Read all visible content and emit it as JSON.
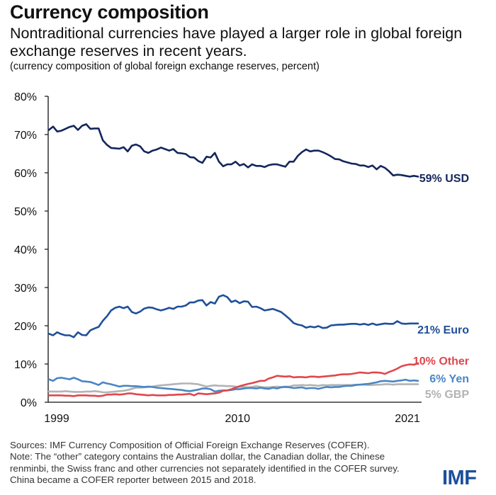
{
  "header": {
    "title": "Currency composition",
    "subtitle": "Nontraditional currencies have played a larger role in global foreign exchange reserves in recent years.",
    "unit_note": "(currency composition of global foreign exchange reserves, percent)"
  },
  "footer": {
    "sources": "Sources: IMF Currency Composition of Official Foreign Exchange Reserves (COFER).",
    "note": "Note: The “other” category contains the Australian dollar, the Canadian dollar, the Chinese renminbi, the Swiss franc and other currencies not separately identified in the COFER survey. China became a COFER reporter between 2015 and 2018.",
    "logo": "IMF"
  },
  "chart_data": {
    "type": "line",
    "title": "Currency composition",
    "xlabel": "",
    "ylabel": "",
    "frequency": "quarterly",
    "x_start": "1999Q1",
    "x_end": "2021Q2",
    "xlim": [
      1999,
      2021.5
    ],
    "ylim": [
      0,
      80
    ],
    "yticks": [
      0,
      10,
      20,
      30,
      40,
      50,
      60,
      70,
      80
    ],
    "ytick_labels": [
      "0%",
      "10%",
      "20%",
      "30%",
      "40%",
      "50%",
      "60%",
      "70%",
      "80%"
    ],
    "xticks": [
      1999,
      2010,
      2021
    ],
    "xtick_labels": [
      "1999",
      "2010",
      "2021"
    ],
    "grid": false,
    "legend": "direct labels at right end of lines",
    "series": [
      {
        "name": "USD",
        "label": "59% USD",
        "color": "#13265c",
        "values": [
          71.2,
          72.1,
          70.8,
          71.0,
          71.5,
          72.0,
          72.3,
          71.2,
          72.3,
          72.7,
          71.5,
          71.6,
          71.6,
          68.5,
          67.3,
          66.5,
          66.4,
          66.3,
          66.7,
          65.6,
          67.1,
          67.4,
          66.9,
          65.6,
          65.2,
          65.8,
          66.1,
          66.6,
          66.2,
          65.8,
          66.2,
          65.2,
          65.1,
          64.9,
          64.1,
          64.0,
          63.1,
          62.6,
          64.2,
          64.0,
          65.2,
          62.9,
          61.7,
          62.2,
          62.2,
          62.9,
          61.9,
          62.3,
          61.4,
          62.2,
          61.8,
          61.8,
          61.5,
          62.0,
          62.2,
          62.2,
          61.9,
          61.6,
          62.9,
          62.9,
          64.4,
          65.4,
          66.1,
          65.6,
          65.8,
          65.8,
          65.4,
          64.9,
          64.3,
          63.6,
          63.5,
          63.0,
          62.7,
          62.4,
          62.3,
          61.9,
          61.9,
          61.5,
          61.9,
          60.9,
          61.8,
          61.3,
          60.4,
          59.3,
          59.5,
          59.4,
          59.2,
          59.0,
          59.2,
          59.0
        ]
      },
      {
        "name": "Euro",
        "label": "21% Euro",
        "color": "#1f4f9a",
        "values": [
          17.9,
          17.5,
          18.3,
          17.8,
          17.5,
          17.5,
          17.0,
          18.3,
          17.6,
          17.5,
          18.8,
          19.3,
          19.7,
          21.3,
          22.5,
          24.0,
          24.7,
          25.0,
          24.6,
          25.0,
          23.6,
          23.2,
          23.7,
          24.5,
          24.8,
          24.7,
          24.3,
          24.0,
          24.3,
          24.7,
          24.4,
          25.0,
          25.0,
          25.3,
          26.1,
          26.1,
          26.6,
          26.7,
          25.3,
          26.2,
          25.8,
          27.6,
          28.0,
          27.5,
          26.2,
          26.6,
          25.9,
          26.4,
          26.3,
          24.9,
          25.0,
          24.6,
          24.0,
          24.2,
          24.4,
          24.0,
          23.6,
          22.7,
          21.8,
          20.7,
          20.3,
          20.1,
          19.5,
          19.8,
          19.6,
          19.9,
          19.4,
          19.5,
          20.1,
          20.2,
          20.3,
          20.3,
          20.4,
          20.5,
          20.5,
          20.3,
          20.5,
          20.2,
          20.6,
          20.2,
          20.4,
          20.6,
          20.5,
          20.5,
          21.2,
          20.6,
          20.5,
          20.6,
          20.6,
          20.6
        ]
      },
      {
        "name": "Other",
        "label": "10% Other",
        "color": "#e0474c",
        "values": [
          1.8,
          1.8,
          1.8,
          1.8,
          1.7,
          1.7,
          1.6,
          1.8,
          1.8,
          1.8,
          1.7,
          1.7,
          1.6,
          1.7,
          2.0,
          2.0,
          2.1,
          2.0,
          2.1,
          2.3,
          2.3,
          2.1,
          2.0,
          1.9,
          1.8,
          1.9,
          1.8,
          1.8,
          1.8,
          1.9,
          1.9,
          2.0,
          2.0,
          2.1,
          2.2,
          1.8,
          2.3,
          2.2,
          2.1,
          2.2,
          2.3,
          2.5,
          3.0,
          3.1,
          3.4,
          3.8,
          4.2,
          4.5,
          4.8,
          5.0,
          5.3,
          5.6,
          5.6,
          6.2,
          6.5,
          6.9,
          6.8,
          6.7,
          6.8,
          6.5,
          6.6,
          6.6,
          6.5,
          6.7,
          6.7,
          6.6,
          6.7,
          6.8,
          6.9,
          7.0,
          7.2,
          7.3,
          7.3,
          7.4,
          7.6,
          7.8,
          7.7,
          7.6,
          7.8,
          7.8,
          7.7,
          7.4,
          7.9,
          8.3,
          8.8,
          9.4,
          9.7,
          9.9,
          9.8,
          10.2
        ]
      },
      {
        "name": "Yen",
        "label": "6% Yen",
        "color": "#4a86c5",
        "values": [
          6.0,
          5.6,
          6.3,
          6.4,
          6.2,
          6.0,
          6.4,
          6.0,
          5.5,
          5.4,
          5.3,
          4.9,
          4.5,
          5.2,
          4.9,
          4.7,
          4.4,
          4.1,
          4.3,
          4.3,
          4.2,
          4.2,
          4.1,
          4.0,
          4.1,
          4.0,
          3.8,
          3.7,
          3.6,
          3.5,
          3.4,
          3.3,
          3.2,
          3.0,
          2.9,
          3.1,
          3.3,
          3.6,
          3.6,
          3.4,
          2.8,
          3.0,
          3.1,
          3.1,
          3.2,
          3.4,
          3.4,
          3.6,
          3.7,
          3.7,
          3.6,
          3.8,
          3.6,
          3.5,
          3.8,
          3.6,
          3.9,
          4.0,
          3.9,
          3.7,
          3.8,
          3.9,
          3.6,
          3.7,
          3.7,
          3.5,
          3.8,
          4.0,
          3.9,
          4.0,
          4.0,
          4.2,
          4.3,
          4.3,
          4.5,
          4.6,
          4.7,
          4.8,
          5.0,
          5.2,
          5.5,
          5.6,
          5.5,
          5.4,
          5.6,
          5.7,
          5.9,
          5.6,
          5.7,
          5.6
        ]
      },
      {
        "name": "GBP",
        "label": "5% GBP",
        "color": "#b3b3b3",
        "values": [
          2.8,
          2.8,
          2.8,
          2.8,
          2.9,
          2.8,
          2.7,
          2.7,
          2.7,
          2.8,
          2.8,
          2.9,
          2.8,
          2.6,
          2.6,
          2.7,
          2.8,
          2.9,
          3.0,
          3.2,
          3.5,
          3.8,
          3.8,
          3.9,
          4.0,
          4.1,
          4.3,
          4.4,
          4.5,
          4.6,
          4.7,
          4.8,
          4.9,
          4.9,
          4.9,
          4.8,
          4.7,
          4.4,
          4.1,
          4.3,
          4.4,
          4.3,
          4.3,
          4.2,
          4.2,
          4.1,
          4.0,
          4.0,
          3.9,
          4.0,
          4.2,
          4.0,
          3.9,
          3.9,
          4.0,
          4.1,
          4.0,
          4.1,
          4.1,
          4.4,
          4.4,
          4.5,
          4.4,
          4.5,
          4.4,
          4.3,
          4.5,
          4.4,
          4.5,
          4.5,
          4.5,
          4.5,
          4.5,
          4.5,
          4.6,
          4.6,
          4.6,
          4.5,
          4.5,
          4.6,
          4.6,
          4.7,
          4.7,
          4.6,
          4.7,
          4.7,
          4.7,
          4.7,
          4.7,
          4.7
        ]
      }
    ]
  }
}
